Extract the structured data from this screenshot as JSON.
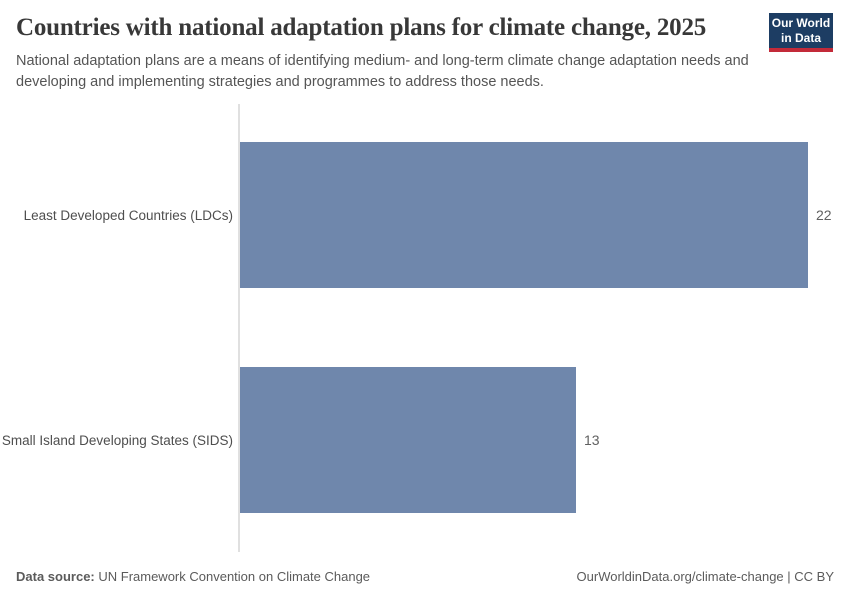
{
  "header": {
    "title": "Countries with national adaptation plans for climate change, 2025",
    "subtitle": "National adaptation plans are a means of identifying medium- and long-term climate change adaptation needs and developing and implementing strategies and programmes to address those needs.",
    "logo": {
      "line1": "Our World",
      "line2": "in Data",
      "background_color": "#1d3d63",
      "stripe_color": "#c32a39"
    }
  },
  "chart_data": {
    "type": "bar",
    "orientation": "horizontal",
    "title": "Countries with national adaptation plans for climate change, 2025",
    "categories": [
      "Least Developed Countries (LDCs)",
      "Small Island Developing States (SIDS)"
    ],
    "values": [
      22,
      13
    ],
    "xlim": [
      0,
      22
    ],
    "xlabel": "",
    "ylabel": "",
    "grid": false,
    "legend": false,
    "bar_color": "#6f87ac",
    "axis_line_color": "#e0e0e0"
  },
  "footer": {
    "datasource_label": "Data source:",
    "datasource_value": " UN Framework Convention on Climate Change",
    "right_text": "OurWorldinData.org/climate-change | CC BY"
  }
}
